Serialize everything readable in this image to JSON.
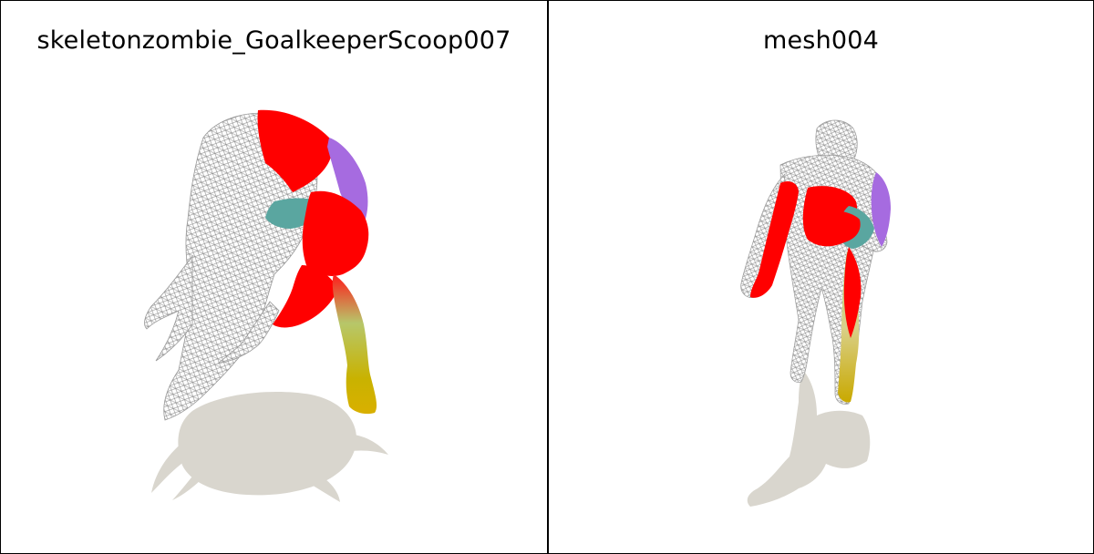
{
  "panels": [
    {
      "title": "skeletonzombie_GoalkeeperScoop007"
    },
    {
      "title": "mesh004"
    }
  ],
  "colors": {
    "background": "#ffffff",
    "border": "#000000",
    "shadow": "#d9d6ce",
    "wireframe": "#8a8a8a",
    "segment_red": "#ff0000",
    "segment_purple": "#a66be0",
    "segment_teal": "#5aa6a0",
    "segment_yellow": "#d4b400",
    "segment_green": "#a9c46a"
  }
}
